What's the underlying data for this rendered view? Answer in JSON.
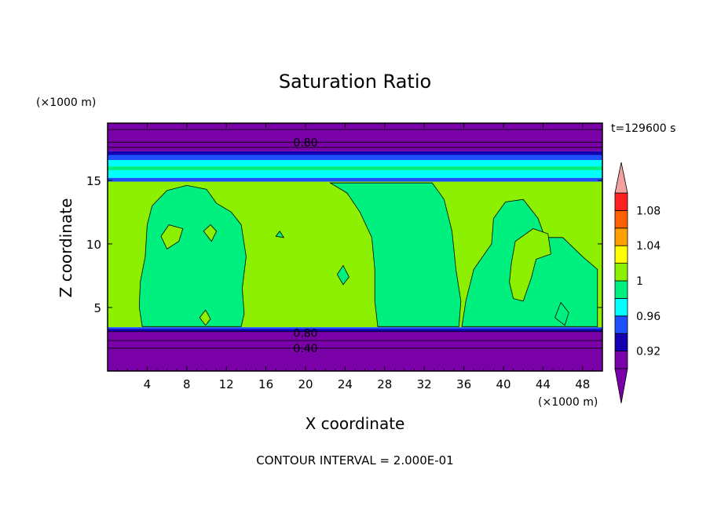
{
  "chart_data": {
    "type": "heatmap",
    "title": "Saturation Ratio",
    "xlabel": "X coordinate",
    "ylabel": "Z coordinate",
    "x_units": "(×1000 m)",
    "z_units": "(×1000 m)",
    "time_label": "t=129600 s",
    "contour_interval_text": "CONTOUR INTERVAL = 2.000E-01",
    "xlim": [
      0,
      50
    ],
    "zlim": [
      0,
      19.5
    ],
    "x_ticks": [
      4,
      8,
      12,
      16,
      20,
      24,
      28,
      32,
      36,
      40,
      44,
      48
    ],
    "z_ticks": [
      5,
      10,
      15
    ],
    "colorbar": {
      "levels": [
        0.9,
        0.92,
        0.94,
        0.96,
        0.98,
        1.0,
        1.02,
        1.04,
        1.06,
        1.08,
        1.1
      ],
      "colors": [
        "#7a00a8",
        "#1400b0",
        "#1e50ff",
        "#00ffff",
        "#00f080",
        "#8cf000",
        "#ffff00",
        "#ffa000",
        "#ff6000",
        "#ff2020"
      ],
      "under_color": "#7a00a8",
      "over_color": "#f4a0a0",
      "labels": [
        "0.92",
        "0.96",
        "1",
        "1.04",
        "1.08"
      ],
      "label_values": [
        0.92,
        0.96,
        1.0,
        1.04,
        1.08
      ]
    },
    "contour_labels": [
      {
        "text": "0.80",
        "x": 20,
        "z": 18
      },
      {
        "text": "0.80",
        "x": 20,
        "z": 3.0
      },
      {
        "text": "0.40",
        "x": 20,
        "z": 1.8
      }
    ],
    "horizontal_bands": [
      {
        "z0": 0,
        "z1": 3.1,
        "color": "#7a00a8"
      },
      {
        "z0": 3.1,
        "z1": 3.3,
        "color": "#1400b0"
      },
      {
        "z0": 3.3,
        "z1": 3.45,
        "color": "#1e50ff"
      },
      {
        "z0": 3.45,
        "z1": 14.9,
        "color": "#8cf000"
      },
      {
        "z0": 14.9,
        "z1": 15.2,
        "color": "#1e50ff"
      },
      {
        "z0": 15.2,
        "z1": 15.8,
        "color": "#00ffff"
      },
      {
        "z0": 15.8,
        "z1": 16.1,
        "color": "#00f080"
      },
      {
        "z0": 16.1,
        "z1": 16.6,
        "color": "#00ffff"
      },
      {
        "z0": 16.6,
        "z1": 17.0,
        "color": "#1e50ff"
      },
      {
        "z0": 17.0,
        "z1": 17.3,
        "color": "#1400b0"
      },
      {
        "z0": 17.3,
        "z1": 19.5,
        "color": "#7a00a8"
      }
    ],
    "regions": [
      {
        "name": "plume-1",
        "color": "#00f080",
        "points": [
          [
            3.5,
            3.5
          ],
          [
            3.2,
            5
          ],
          [
            3.3,
            7
          ],
          [
            3.8,
            9
          ],
          [
            4,
            11.5
          ],
          [
            4.5,
            13
          ],
          [
            6,
            14.2
          ],
          [
            8,
            14.6
          ],
          [
            10,
            14.3
          ],
          [
            11,
            13.2
          ],
          [
            12.5,
            12.5
          ],
          [
            13.5,
            11.5
          ],
          [
            14,
            9
          ],
          [
            13.6,
            6.5
          ],
          [
            13.8,
            4.5
          ],
          [
            13.5,
            3.5
          ]
        ]
      },
      {
        "name": "plume-2",
        "color": "#00f080",
        "points": [
          [
            27.3,
            3.5
          ],
          [
            27,
            5.5
          ],
          [
            27,
            8
          ],
          [
            26.7,
            10.5
          ],
          [
            25.5,
            12.5
          ],
          [
            24.2,
            14
          ],
          [
            22.5,
            14.8
          ],
          [
            32.8,
            14.8
          ],
          [
            34,
            13.5
          ],
          [
            34.8,
            11
          ],
          [
            35.2,
            8
          ],
          [
            35.7,
            5.5
          ],
          [
            35.5,
            3.5
          ]
        ]
      },
      {
        "name": "plume-3",
        "color": "#00f080",
        "points": [
          [
            35.8,
            3.5
          ],
          [
            36.2,
            5.5
          ],
          [
            37,
            8
          ],
          [
            38.8,
            10
          ],
          [
            39,
            12
          ],
          [
            40.2,
            13.3
          ],
          [
            42,
            13.5
          ],
          [
            43.5,
            12
          ],
          [
            44.2,
            10.5
          ],
          [
            46,
            10.5
          ],
          [
            48,
            9
          ],
          [
            49.5,
            8
          ],
          [
            49.5,
            3.5
          ]
        ]
      },
      {
        "name": "inner-1",
        "color": "#8cf000",
        "points": [
          [
            40.8,
            8.5
          ],
          [
            41.2,
            10.2
          ],
          [
            43,
            11.2
          ],
          [
            44.5,
            10.8
          ],
          [
            44.8,
            9.2
          ],
          [
            43.3,
            8.8
          ],
          [
            42.8,
            7.3
          ],
          [
            42,
            5.5
          ],
          [
            41,
            5.7
          ],
          [
            40.6,
            7
          ]
        ]
      },
      {
        "name": "blob-1",
        "color": "#8cf000",
        "points": [
          [
            5.4,
            10.6
          ],
          [
            6.2,
            11.5
          ],
          [
            7.6,
            11.2
          ],
          [
            7.2,
            10.2
          ],
          [
            6,
            9.6
          ]
        ]
      },
      {
        "name": "blob-2",
        "color": "#8cf000",
        "points": [
          [
            9.7,
            11
          ],
          [
            10.4,
            11.5
          ],
          [
            11,
            11
          ],
          [
            10.5,
            10.2
          ]
        ]
      },
      {
        "name": "blob-3",
        "color": "#8cf000",
        "points": [
          [
            9.3,
            4.2
          ],
          [
            9.9,
            4.8
          ],
          [
            10.4,
            4.1
          ],
          [
            9.9,
            3.6
          ]
        ]
      },
      {
        "name": "blob-4",
        "color": "#00f080",
        "points": [
          [
            23.2,
            7.6
          ],
          [
            23.8,
            8.3
          ],
          [
            24.4,
            7.4
          ],
          [
            23.8,
            6.8
          ]
        ]
      },
      {
        "name": "blob-5",
        "color": "#00f080",
        "points": [
          [
            17,
            10.6
          ],
          [
            17.4,
            11
          ],
          [
            17.8,
            10.5
          ]
        ]
      },
      {
        "name": "blob-6",
        "color": "#00f080",
        "points": [
          [
            45.2,
            4.2
          ],
          [
            45.8,
            5.4
          ],
          [
            46.6,
            4.6
          ],
          [
            46.2,
            3.6
          ]
        ]
      }
    ]
  }
}
